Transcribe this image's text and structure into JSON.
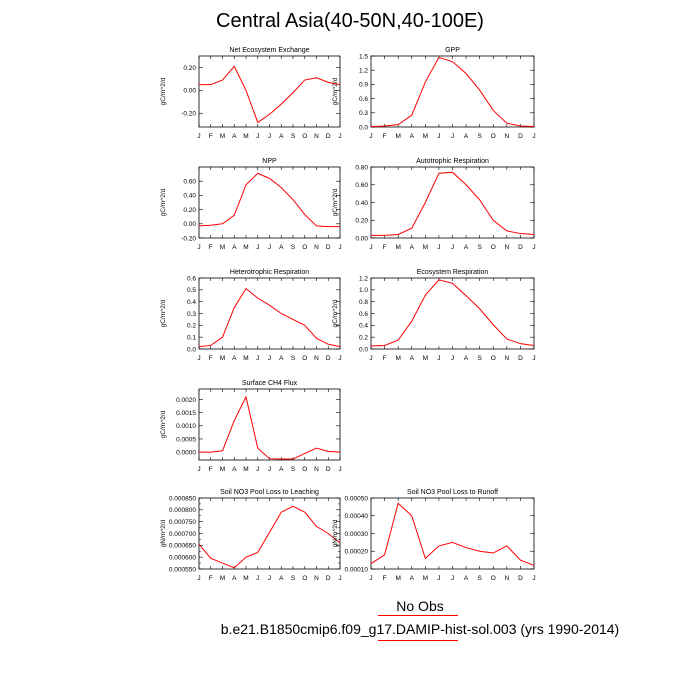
{
  "page": {
    "title": "Central Asia(40-50N,40-100E)",
    "legend_label": "No Obs",
    "case_label": "b.e21.B1850cmip6.f09_g17.DAMIP-hist-sol.003 (yrs 1990-2014)",
    "line_color": "#ff0000"
  },
  "chart_data": [
    {
      "type": "line",
      "title": "Net Ecosystem Exchange",
      "ylabel": "gC/m^2/d",
      "categories": [
        "J",
        "F",
        "M",
        "A",
        "M",
        "J",
        "J",
        "A",
        "S",
        "O",
        "N",
        "D",
        "J"
      ],
      "values": [
        0.05,
        0.05,
        0.09,
        0.21,
        0.0,
        -0.28,
        -0.21,
        -0.12,
        -0.02,
        0.09,
        0.11,
        0.07,
        0.05
      ],
      "ylim": [
        -0.32,
        0.3
      ],
      "yticks": [
        -0.2,
        0.0,
        0.2
      ],
      "ytick_labels": [
        "-0.20",
        "0.00",
        "0.20"
      ]
    },
    {
      "type": "line",
      "title": "GPP",
      "ylabel": "gC/m^2/d",
      "categories": [
        "J",
        "F",
        "M",
        "A",
        "M",
        "J",
        "J",
        "A",
        "S",
        "O",
        "N",
        "D",
        "J"
      ],
      "values": [
        0.01,
        0.02,
        0.05,
        0.25,
        0.95,
        1.47,
        1.38,
        1.13,
        0.78,
        0.35,
        0.08,
        0.02,
        0.01
      ],
      "ylim": [
        0,
        1.5
      ],
      "yticks": [
        0,
        0.3,
        0.6,
        0.9,
        1.2,
        1.5
      ],
      "ytick_labels": [
        "0.0",
        "0.3",
        "0.6",
        "0.9",
        "1.2",
        "1.5"
      ]
    },
    {
      "type": "line",
      "title": "NPP",
      "ylabel": "gC/m^2/d",
      "categories": [
        "J",
        "F",
        "M",
        "A",
        "M",
        "J",
        "J",
        "A",
        "S",
        "O",
        "N",
        "D",
        "J"
      ],
      "values": [
        -0.03,
        -0.02,
        0.0,
        0.12,
        0.55,
        0.71,
        0.64,
        0.51,
        0.34,
        0.13,
        -0.03,
        -0.04,
        -0.04
      ],
      "ylim": [
        -0.2,
        0.8
      ],
      "yticks": [
        -0.2,
        0.0,
        0.2,
        0.4,
        0.6
      ],
      "ytick_labels": [
        "-0.20",
        "0.00",
        "0.20",
        "0.40",
        "0.60"
      ]
    },
    {
      "type": "line",
      "title": "Autotrophic Respiration",
      "ylabel": "gC/m^2/d",
      "categories": [
        "J",
        "F",
        "M",
        "A",
        "M",
        "J",
        "J",
        "A",
        "S",
        "O",
        "N",
        "D",
        "J"
      ],
      "values": [
        0.03,
        0.03,
        0.04,
        0.11,
        0.4,
        0.73,
        0.74,
        0.6,
        0.43,
        0.2,
        0.08,
        0.05,
        0.04
      ],
      "ylim": [
        0,
        0.8
      ],
      "yticks": [
        0,
        0.2,
        0.4,
        0.6,
        0.8
      ],
      "ytick_labels": [
        "0.00",
        "0.20",
        "0.40",
        "0.60",
        "0.80"
      ]
    },
    {
      "type": "line",
      "title": "Heterotrophic Respiration",
      "ylabel": "gC/m^2/d",
      "categories": [
        "J",
        "F",
        "M",
        "A",
        "M",
        "J",
        "J",
        "A",
        "S",
        "O",
        "N",
        "D",
        "J"
      ],
      "values": [
        0.02,
        0.03,
        0.1,
        0.35,
        0.51,
        0.43,
        0.37,
        0.3,
        0.25,
        0.2,
        0.09,
        0.04,
        0.02
      ],
      "ylim": [
        0,
        0.6
      ],
      "yticks": [
        0,
        0.1,
        0.2,
        0.3,
        0.4,
        0.5,
        0.6
      ],
      "ytick_labels": [
        "0.0",
        "0.1",
        "0.2",
        "0.3",
        "0.4",
        "0.5",
        "0.6"
      ]
    },
    {
      "type": "line",
      "title": "Ecosystem Respiration",
      "ylabel": "gC/m^2/d",
      "categories": [
        "J",
        "F",
        "M",
        "A",
        "M",
        "J",
        "J",
        "A",
        "S",
        "O",
        "N",
        "D",
        "J"
      ],
      "values": [
        0.05,
        0.06,
        0.15,
        0.47,
        0.91,
        1.17,
        1.11,
        0.9,
        0.68,
        0.41,
        0.17,
        0.09,
        0.06
      ],
      "ylim": [
        0,
        1.2
      ],
      "yticks": [
        0,
        0.2,
        0.4,
        0.6,
        0.8,
        1.0,
        1.2
      ],
      "ytick_labels": [
        "0.0",
        "0.2",
        "0.4",
        "0.6",
        "0.8",
        "1.0",
        "1.2"
      ]
    },
    {
      "type": "line",
      "title": "Surface CH4 Flux",
      "ylabel": "gC/m^2/d",
      "categories": [
        "J",
        "F",
        "M",
        "A",
        "M",
        "J",
        "J",
        "A",
        "S",
        "O",
        "N",
        "D",
        "J"
      ],
      "values": [
        0.0,
        0.0,
        5e-05,
        0.0012,
        0.0021,
        0.00015,
        -0.00025,
        -0.00026,
        -0.00026,
        -5e-05,
        0.00015,
        3e-05,
        0.0
      ],
      "ylim": [
        -0.0003,
        0.0024
      ],
      "yticks": [
        0.0,
        0.0005,
        0.001,
        0.0015,
        0.002
      ],
      "ytick_labels": [
        "0.0000",
        "0.0005",
        "0.0010",
        "0.0015",
        "0.0020"
      ]
    },
    {
      "type": "line",
      "title": "Soil NO3 Pool Loss to Leaching",
      "ylabel": "gN/m^2/d",
      "categories": [
        "J",
        "F",
        "M",
        "A",
        "M",
        "J",
        "J",
        "A",
        "S",
        "O",
        "N",
        "D",
        "J"
      ],
      "values": [
        0.000655,
        0.000595,
        0.000575,
        0.000555,
        0.0006,
        0.00062,
        0.000705,
        0.00079,
        0.000815,
        0.00079,
        0.00073,
        0.0007,
        0.00066
      ],
      "ylim": [
        0.00055,
        0.00085
      ],
      "yticks": [
        0.00055,
        0.0006,
        0.00065,
        0.0007,
        0.00075,
        0.0008,
        0.00085
      ],
      "ytick_labels": [
        "0.000550",
        "0.000600",
        "0.000650",
        "0.000700",
        "0.000750",
        "0.000800",
        "0.000850"
      ],
      "yminor": [
        0.000575,
        0.000625,
        0.000675,
        0.000725,
        0.000775,
        0.000825
      ]
    },
    {
      "type": "line",
      "title": "Soil NO3 Pool Loss to Runoff",
      "ylabel": "gN/m^2/d",
      "categories": [
        "J",
        "F",
        "M",
        "A",
        "M",
        "J",
        "J",
        "A",
        "S",
        "O",
        "N",
        "D",
        "J"
      ],
      "values": [
        0.00013,
        0.00018,
        0.00047,
        0.0004,
        0.00016,
        0.00023,
        0.00025,
        0.00022,
        0.0002,
        0.00019,
        0.00023,
        0.00015,
        0.00012
      ],
      "ylim": [
        0.0001,
        0.0005
      ],
      "yticks": [
        0.0001,
        0.0002,
        0.0003,
        0.0004,
        0.0005
      ],
      "ytick_labels": [
        "0.00010",
        "0.00020",
        "0.00030",
        "0.00040",
        "0.00050"
      ]
    }
  ]
}
